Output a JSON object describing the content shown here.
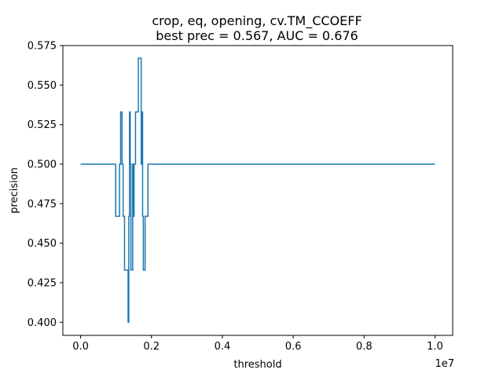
{
  "chart_data": {
    "type": "line",
    "title": "crop, eq, opening, cv.TM_CCOEFF",
    "subtitle": "best prec = 0.567, AUC = 0.676",
    "xlabel": "threshold",
    "ylabel": "precision",
    "x_offset_label": "1e7",
    "xlim": [
      -0.05,
      1.05
    ],
    "ylim": [
      0.3917,
      0.575
    ],
    "x_scale": 10000000,
    "x_ticks": [
      0.0,
      0.2,
      0.4,
      0.6,
      0.8,
      1.0
    ],
    "x_tick_labels": [
      "0.0",
      "0.2",
      "0.4",
      "0.6",
      "0.8",
      "1.0"
    ],
    "y_ticks": [
      0.4,
      0.425,
      0.45,
      0.475,
      0.5,
      0.525,
      0.55,
      0.575
    ],
    "y_tick_labels": [
      "0.400",
      "0.425",
      "0.450",
      "0.475",
      "0.500",
      "0.525",
      "0.550",
      "0.575"
    ],
    "line_color": "#1f77b4",
    "series": [
      {
        "name": "precision",
        "drawstyle": "steps",
        "x": [
          0.0,
          0.099,
          0.099,
          0.11,
          0.11,
          0.113,
          0.113,
          0.117,
          0.117,
          0.12,
          0.12,
          0.124,
          0.124,
          0.134,
          0.134,
          0.136,
          0.136,
          0.138,
          0.138,
          0.14,
          0.14,
          0.142,
          0.142,
          0.147,
          0.147,
          0.149,
          0.149,
          0.151,
          0.151,
          0.155,
          0.155,
          0.163,
          0.163,
          0.171,
          0.171,
          0.173,
          0.173,
          0.175,
          0.175,
          0.177,
          0.177,
          0.182,
          0.182,
          0.19,
          0.19,
          0.192,
          0.192,
          0.195,
          0.195,
          1.0
        ],
        "y": [
          0.5,
          0.5,
          0.467,
          0.467,
          0.5,
          0.5,
          0.533,
          0.533,
          0.5,
          0.5,
          0.467,
          0.467,
          0.433,
          0.433,
          0.4,
          0.4,
          0.467,
          0.467,
          0.533,
          0.533,
          0.5,
          0.5,
          0.433,
          0.433,
          0.5,
          0.5,
          0.467,
          0.467,
          0.5,
          0.5,
          0.533,
          0.533,
          0.567,
          0.567,
          0.5,
          0.5,
          0.533,
          0.533,
          0.467,
          0.467,
          0.433,
          0.433,
          0.467,
          0.467,
          0.5,
          0.5,
          0.5,
          0.5,
          0.5,
          0.5
        ]
      }
    ]
  }
}
